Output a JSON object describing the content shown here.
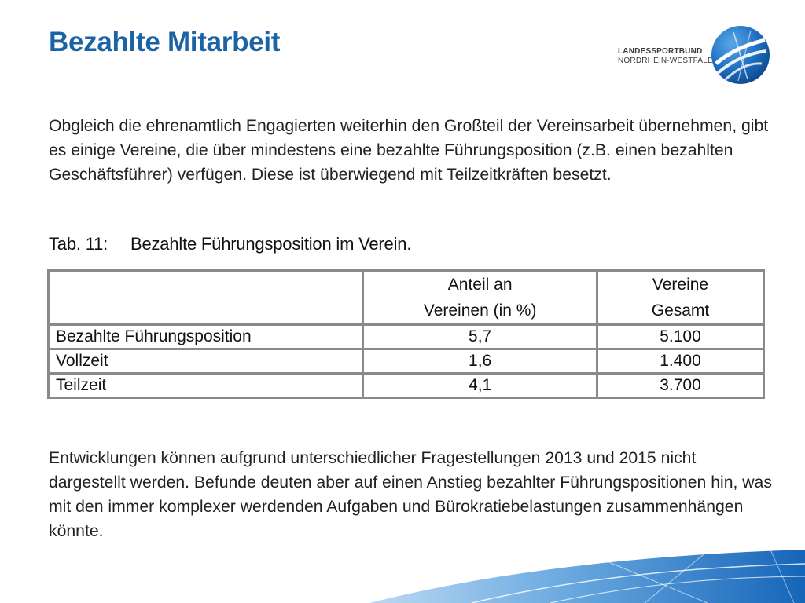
{
  "slide": {
    "title": "Bezahlte Mitarbeit",
    "logo": {
      "line1": "LANDESSPORTBUND",
      "line2": "NORDRHEIN-WESTFALEN",
      "emblem": "lsb-nrw-emblem"
    },
    "paragraph1": "Obgleich die ehrenamtlich Engagierten weiterhin den Großteil der Vereinsarbeit übernehmen, gibt es einige Vereine, die über mindestens eine bezahlte Führungsposition (z.B. einen bezahlten Geschäftsführer) verfügen. Diese ist überwiegend mit Teilzeitkräften besetzt.",
    "table_caption": {
      "number": "Tab. 11:",
      "text": "Bezahlte Führungsposition im Verein."
    },
    "table": {
      "header": {
        "col1": "",
        "col2_line1": "Anteil an",
        "col2_line2": "Vereinen (in %)",
        "col3_line1": "Vereine",
        "col3_line2": "Gesamt"
      },
      "rows": [
        {
          "label": "Bezahlte Führungsposition",
          "percent": "5,7",
          "total": "5.100"
        },
        {
          "label": "Vollzeit",
          "percent": "1,6",
          "total": "1.400"
        },
        {
          "label": "Teilzeit",
          "percent": "4,1",
          "total": "3.700"
        }
      ]
    },
    "paragraph2": "Entwicklungen können aufgrund unterschiedlicher Fragestellungen 2013 und 2015 nicht dargestellt werden. Befunde deuten aber auf einen Anstieg bezahlter Führungspositionen hin, was mit den immer komplexer werdenden Aufgaben und Bürokratiebelastungen zusammenhängen könnte.",
    "colors": {
      "title": "#1c63a5",
      "accent_blue": "#1c63a5",
      "wave_light": "#7fb6e6",
      "wave_dark": "#1565b8"
    }
  }
}
